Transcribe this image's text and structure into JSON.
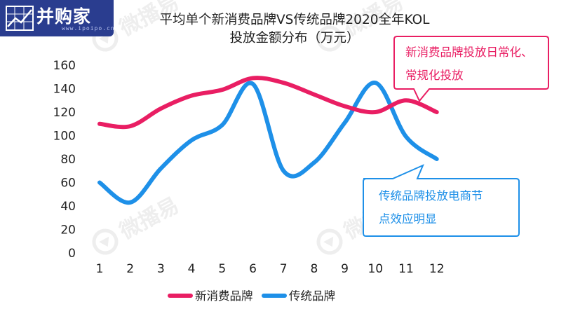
{
  "logo": {
    "name": "并购家",
    "site": "www.ipoipo.cn"
  },
  "watermark": "微播易",
  "chart_data": {
    "type": "line",
    "title": "平均单个新消费品牌VS传统品牌2020全年KOL\n投放金额分布（万元）",
    "x": [
      1,
      2,
      3,
      4,
      5,
      6,
      7,
      8,
      9,
      10,
      11,
      12
    ],
    "ylim": [
      0,
      160
    ],
    "yticks": [
      0,
      20,
      40,
      60,
      80,
      100,
      120,
      140,
      160
    ],
    "grid": false,
    "legend_position": "bottom",
    "series": [
      {
        "name": "新消费品牌",
        "color": "#e91e63",
        "values": [
          110,
          108,
          123,
          134,
          139,
          149,
          145,
          135,
          125,
          120,
          130,
          120
        ]
      },
      {
        "name": "传统品牌",
        "color": "#1e90e8",
        "values": [
          60,
          43,
          72,
          96,
          109,
          144,
          70,
          77,
          111,
          145,
          99,
          80
        ]
      }
    ],
    "annotations": [
      {
        "text": "新消费品牌投放日常化、\n常规化投放",
        "color": "#e91e63"
      },
      {
        "text": "传统品牌投放电商节\n点效应明显",
        "color": "#1e90e8"
      }
    ]
  }
}
